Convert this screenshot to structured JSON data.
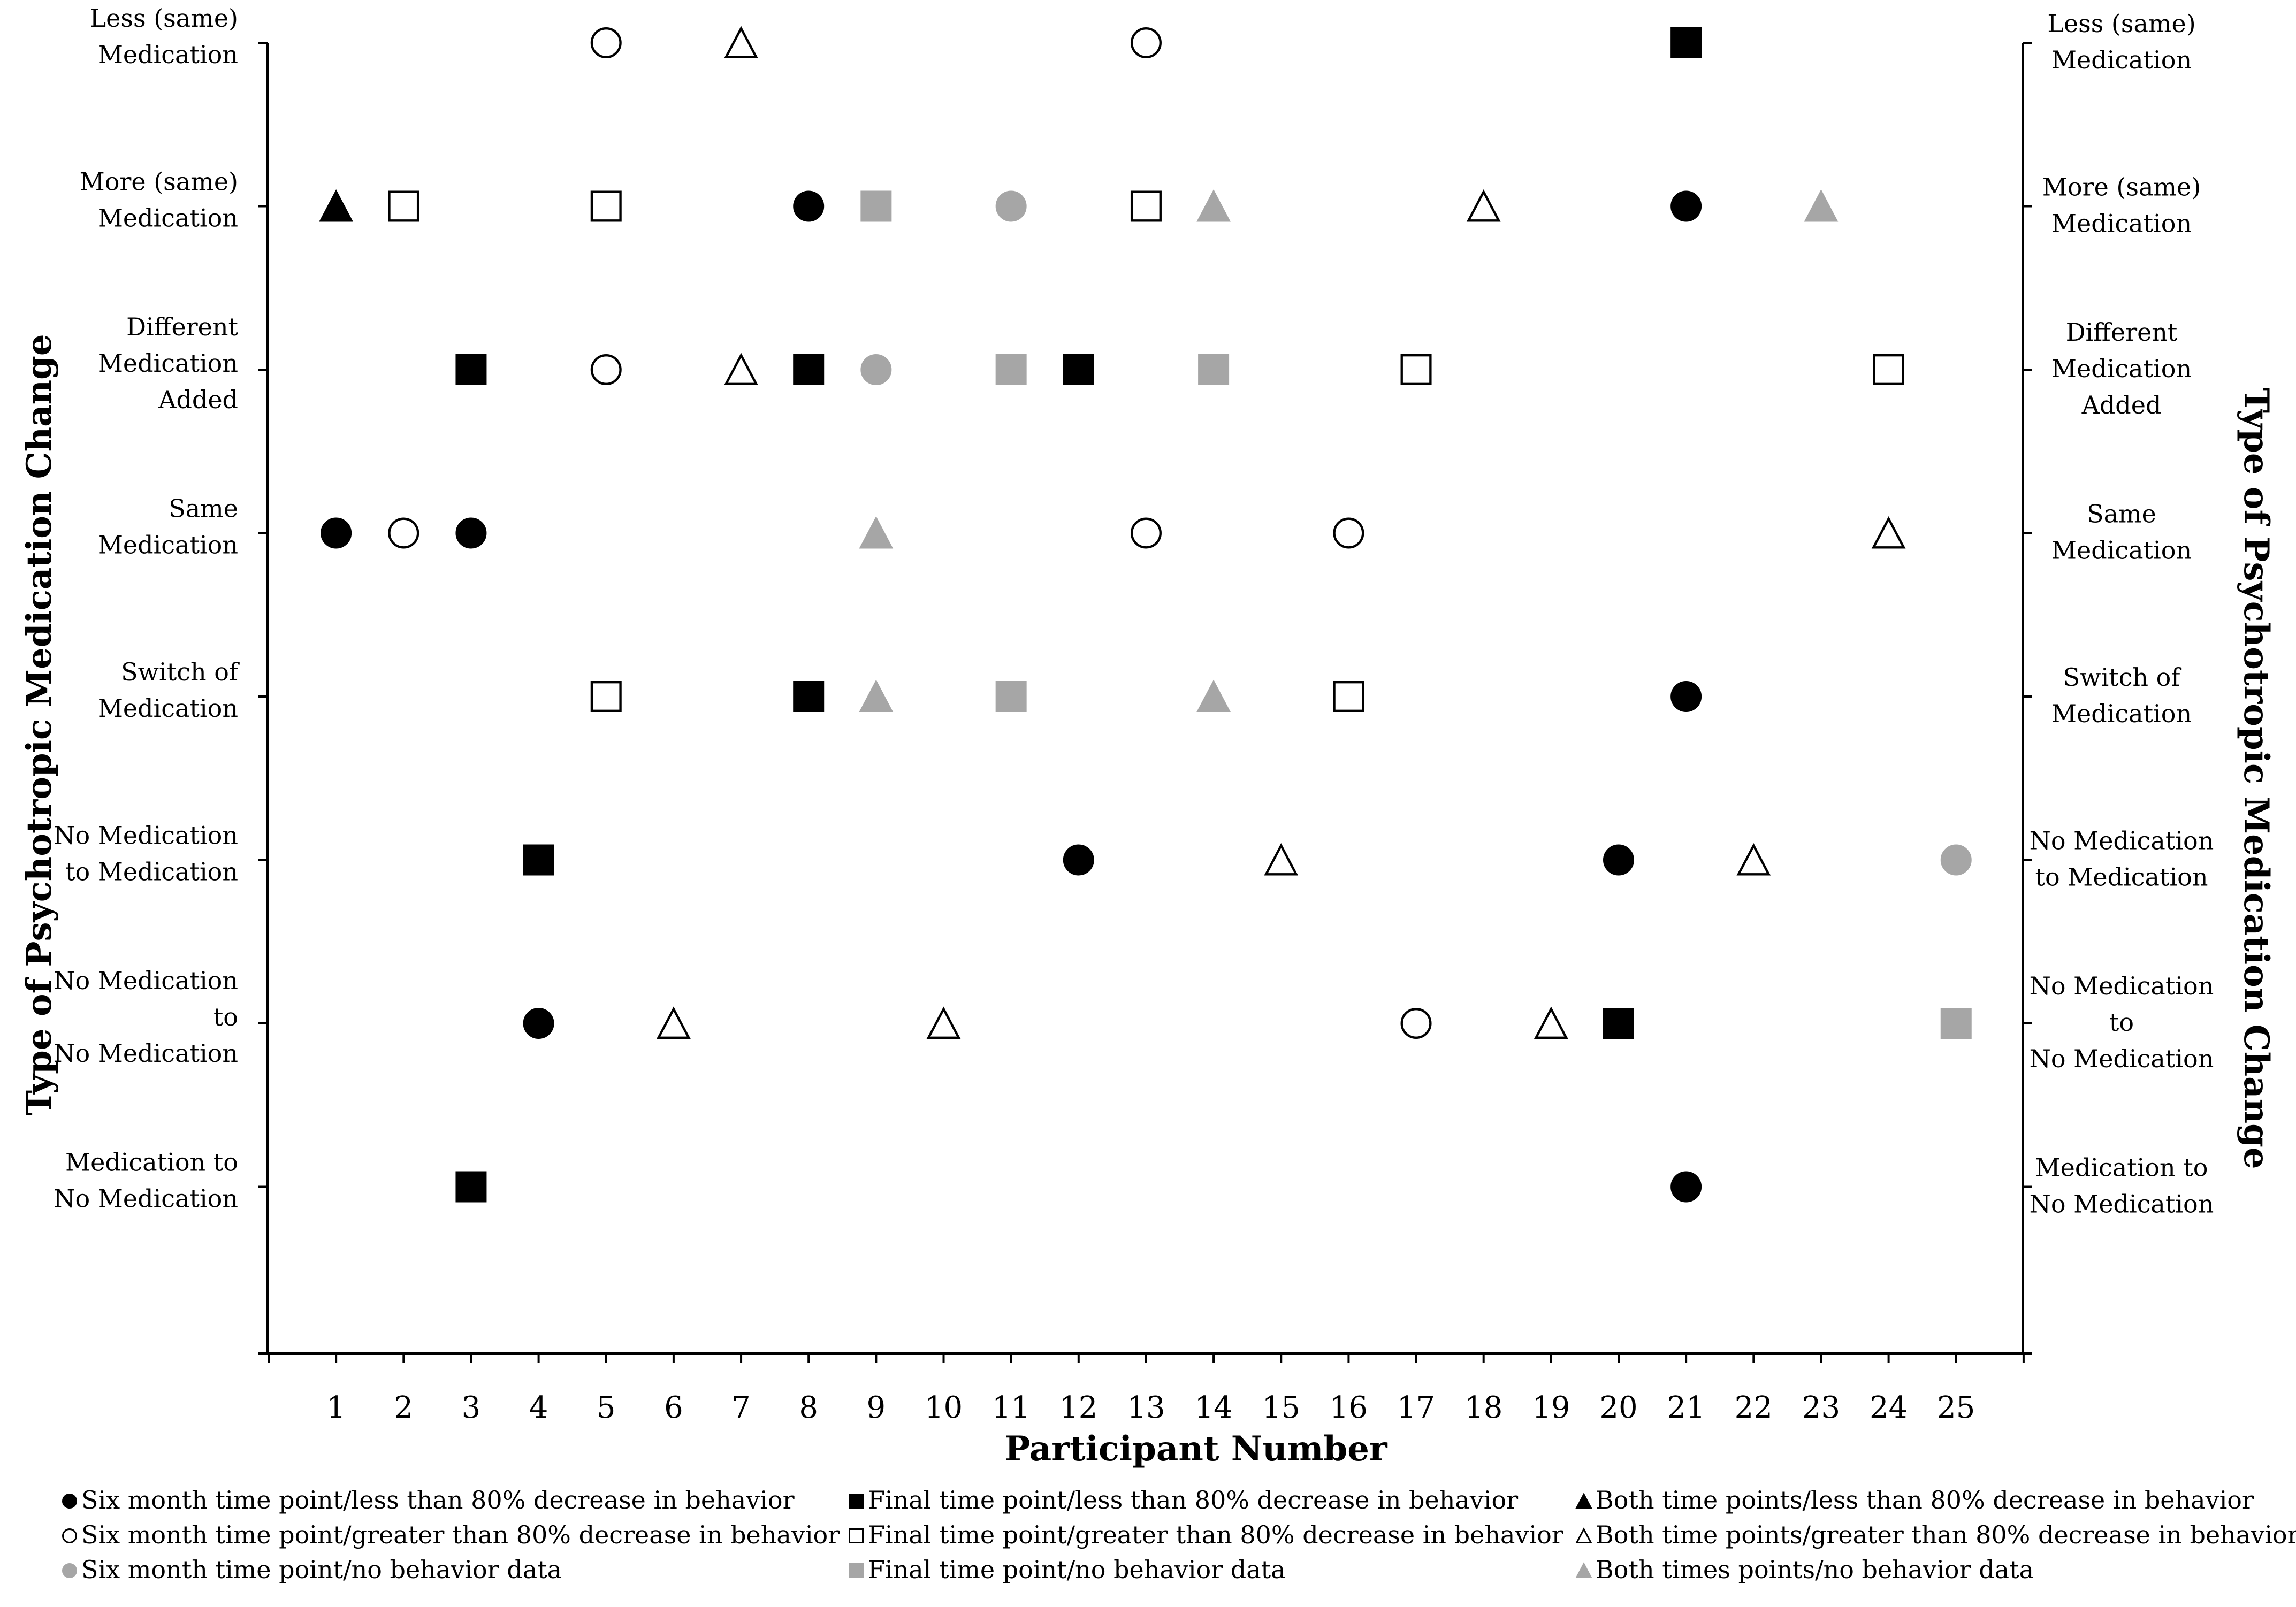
{
  "chart_data": {
    "type": "scatter",
    "xlabel": "Participant Number",
    "ylabel": "Type of Psychotropic Medication Change",
    "ylabel_right": "Type of Psychotropic Medication Change",
    "x_ticks": [
      1,
      2,
      3,
      4,
      5,
      6,
      7,
      8,
      9,
      10,
      11,
      12,
      13,
      14,
      15,
      16,
      17,
      18,
      19,
      20,
      21,
      22,
      23,
      24,
      25
    ],
    "xlim": [
      0,
      26
    ],
    "categories": [
      {
        "lines": [
          "Less (same)",
          "Medication"
        ]
      },
      {
        "lines": [
          "More (same)",
          "Medication"
        ]
      },
      {
        "lines": [
          "Different",
          "Medication",
          "Added"
        ]
      },
      {
        "lines": [
          "Same",
          "Medication"
        ]
      },
      {
        "lines": [
          "Switch of",
          "Medication"
        ]
      },
      {
        "lines": [
          "No Medication",
          "to Medication"
        ]
      },
      {
        "lines": [
          "No Medication",
          "to",
          "No Medication"
        ]
      },
      {
        "lines": [
          "Medication to",
          "No Medication"
        ]
      }
    ],
    "marker_styles": {
      "six_less": {
        "shape": "circle",
        "fill": "#000000",
        "stroke": "#000000"
      },
      "six_greater": {
        "shape": "circle",
        "fill": "#ffffff",
        "stroke": "#000000"
      },
      "six_nodata": {
        "shape": "circle",
        "fill": "#a6a6a6",
        "stroke": "#a6a6a6"
      },
      "final_less": {
        "shape": "square",
        "fill": "#000000",
        "stroke": "#000000"
      },
      "final_greater": {
        "shape": "square",
        "fill": "#ffffff",
        "stroke": "#000000"
      },
      "final_nodata": {
        "shape": "square",
        "fill": "#a6a6a6",
        "stroke": "#a6a6a6"
      },
      "both_less": {
        "shape": "triangle",
        "fill": "#000000",
        "stroke": "#000000"
      },
      "both_greater": {
        "shape": "triangle",
        "fill": "#ffffff",
        "stroke": "#000000"
      },
      "both_nodata": {
        "shape": "triangle",
        "fill": "#a6a6a6",
        "stroke": "#a6a6a6"
      }
    },
    "series": [
      {
        "name": "Six month time point/less than 80% decrease in behavior",
        "style": "six_less",
        "points": [
          [
            8,
            1
          ],
          [
            21,
            1
          ],
          [
            1,
            3
          ],
          [
            3,
            3
          ],
          [
            21,
            4
          ],
          [
            12,
            5
          ],
          [
            20,
            5
          ],
          [
            4,
            6
          ],
          [
            21,
            7
          ]
        ]
      },
      {
        "name": "Six month time point/greater than 80% decrease in behavior",
        "style": "six_greater",
        "points": [
          [
            5,
            0
          ],
          [
            13,
            0
          ],
          [
            5,
            2
          ],
          [
            2,
            3
          ],
          [
            13,
            3
          ],
          [
            16,
            3
          ],
          [
            17,
            6
          ]
        ]
      },
      {
        "name": "Six month time point/no behavior data",
        "style": "six_nodata",
        "points": [
          [
            11,
            1
          ],
          [
            9,
            2
          ],
          [
            25,
            5
          ]
        ]
      },
      {
        "name": "Final time point/less than 80% decrease in behavior",
        "style": "final_less",
        "points": [
          [
            21,
            0
          ],
          [
            3,
            2
          ],
          [
            8,
            2
          ],
          [
            12,
            2
          ],
          [
            8,
            4
          ],
          [
            4,
            5
          ],
          [
            20,
            6
          ],
          [
            3,
            7
          ]
        ]
      },
      {
        "name": "Final time point/greater than 80% decrease in behavior",
        "style": "final_greater",
        "points": [
          [
            2,
            1
          ],
          [
            5,
            1
          ],
          [
            13,
            1
          ],
          [
            17,
            2
          ],
          [
            24,
            2
          ],
          [
            5,
            4
          ],
          [
            16,
            4
          ]
        ]
      },
      {
        "name": "Final time point/no behavior data",
        "style": "final_nodata",
        "points": [
          [
            9,
            1
          ],
          [
            11,
            2
          ],
          [
            14,
            2
          ],
          [
            11,
            4
          ],
          [
            25,
            6
          ]
        ]
      },
      {
        "name": "Both time points/less than 80% decrease in behavior",
        "style": "both_less",
        "points": [
          [
            1,
            1
          ]
        ]
      },
      {
        "name": "Both time points/greater than 80% decrease in behavior",
        "style": "both_greater",
        "points": [
          [
            7,
            0
          ],
          [
            18,
            1
          ],
          [
            7,
            2
          ],
          [
            24,
            3
          ],
          [
            15,
            5
          ],
          [
            22,
            5
          ],
          [
            6,
            6
          ],
          [
            10,
            6
          ],
          [
            19,
            6
          ]
        ]
      },
      {
        "name": "Both times points/no behavior data",
        "style": "both_nodata",
        "points": [
          [
            14,
            1
          ],
          [
            23,
            1
          ],
          [
            9,
            3
          ],
          [
            9,
            4
          ],
          [
            14,
            4
          ]
        ]
      }
    ],
    "legend": {
      "placement": "bottom",
      "columns": [
        [
          "six_less",
          "six_greater",
          "six_nodata"
        ],
        [
          "final_less",
          "final_greater",
          "final_nodata"
        ],
        [
          "both_less",
          "both_greater",
          "both_nodata"
        ]
      ],
      "labels": {
        "six_less": "Six month time point/less than 80% decrease in behavior",
        "six_greater": "Six month time point/greater than 80% decrease in behavior",
        "six_nodata": "Six month time point/no behavior data",
        "final_less": "Final time point/less than 80% decrease in behavior",
        "final_greater": "Final time point/greater than 80% decrease in behavior",
        "final_nodata": "Final time point/no behavior data",
        "both_less": "Both time points/less than 80% decrease in behavior",
        "both_greater": "Both time points/greater than 80% decrease in behavior",
        "both_nodata": "Both times points/no behavior data"
      }
    },
    "grid": false
  }
}
